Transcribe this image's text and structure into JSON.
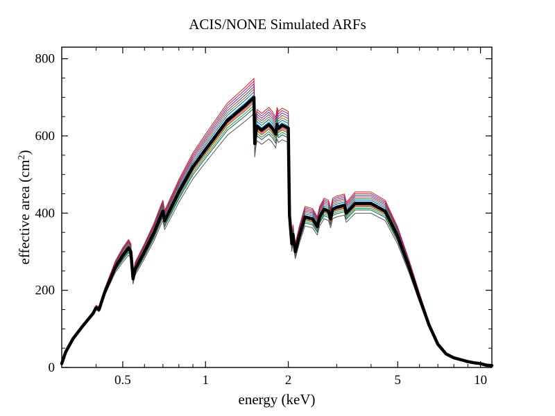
{
  "chart_data": {
    "type": "line",
    "title": "ACIS/NONE Simulated ARFs",
    "xlabel": "energy (keV)",
    "ylabel_main": "effective area (cm",
    "ylabel_sup": "2",
    "ylabel_close": ")",
    "x_scale": "log",
    "xlim": [
      0.3,
      11
    ],
    "ylim": [
      0,
      830
    ],
    "grid": false,
    "x_ticks": [
      {
        "value": 0.5,
        "label": "0.5"
      },
      {
        "value": 1,
        "label": "1"
      },
      {
        "value": 2,
        "label": "2"
      },
      {
        "value": 5,
        "label": "5"
      },
      {
        "value": 10,
        "label": "10"
      }
    ],
    "x_minor_ticks": [
      0.3,
      0.4,
      0.6,
      0.7,
      0.8,
      0.9,
      3,
      4,
      6,
      7,
      8,
      9
    ],
    "y_ticks": [
      {
        "value": 0,
        "label": "0"
      },
      {
        "value": 200,
        "label": "200"
      },
      {
        "value": 400,
        "label": "400"
      },
      {
        "value": 600,
        "label": "600"
      },
      {
        "value": 800,
        "label": "800"
      }
    ],
    "y_minor_step": 50,
    "base_curve": {
      "x": [
        0.3,
        0.31,
        0.33,
        0.36,
        0.39,
        0.4,
        0.41,
        0.43,
        0.47,
        0.5,
        0.525,
        0.535,
        0.545,
        0.555,
        0.6,
        0.65,
        0.69,
        0.7,
        0.71,
        0.8,
        0.9,
        1.0,
        1.2,
        1.4,
        1.5,
        1.51,
        1.525,
        1.54,
        1.6,
        1.7,
        1.75,
        1.8,
        1.82,
        1.84,
        1.9,
        2.0,
        2.02,
        2.06,
        2.08,
        2.12,
        2.2,
        2.3,
        2.45,
        2.55,
        2.6,
        2.7,
        2.8,
        2.85,
        2.9,
        3.0,
        3.2,
        3.25,
        3.5,
        4.0,
        4.5,
        5.0,
        5.5,
        6.0,
        6.5,
        7.0,
        7.5,
        8.0,
        8.5,
        9.0,
        9.5,
        10.0,
        10.5,
        11.0
      ],
      "y": [
        10,
        40,
        75,
        110,
        140,
        155,
        150,
        195,
        260,
        290,
        310,
        300,
        230,
        255,
        300,
        350,
        395,
        405,
        380,
        455,
        520,
        565,
        640,
        680,
        700,
        580,
        610,
        625,
        615,
        630,
        620,
        605,
        630,
        620,
        628,
        620,
        395,
        320,
        345,
        300,
        345,
        390,
        385,
        365,
        390,
        410,
        405,
        385,
        410,
        415,
        420,
        400,
        425,
        425,
        405,
        340,
        260,
        180,
        110,
        60,
        35,
        25,
        20,
        15,
        12,
        10,
        6,
        5
      ]
    },
    "series": [
      {
        "color": "#000000",
        "width": 4.5,
        "scale": 1.0
      },
      {
        "color": "#e41a1c",
        "width": 1,
        "scale": 1.07
      },
      {
        "color": "#e41a1c",
        "width": 1,
        "scale": 1.04
      },
      {
        "color": "#1f4fcf",
        "width": 1,
        "scale": 1.05
      },
      {
        "color": "#1f4fcf",
        "width": 1,
        "scale": 1.02
      },
      {
        "color": "#17a34a",
        "width": 1,
        "scale": 1.03
      },
      {
        "color": "#17a34a",
        "width": 1,
        "scale": 0.97
      },
      {
        "color": "#00bcd4",
        "width": 1,
        "scale": 1.01
      },
      {
        "color": "#00bcd4",
        "width": 1,
        "scale": 0.96
      },
      {
        "color": "#c2185b",
        "width": 1,
        "scale": 0.99
      },
      {
        "color": "#c2185b",
        "width": 1,
        "scale": 1.06
      },
      {
        "color": "#2e7d5b",
        "width": 1,
        "scale": 0.98
      },
      {
        "color": "#555555",
        "width": 1,
        "scale": 0.94
      },
      {
        "color": "#555555",
        "width": 1,
        "scale": 0.96
      },
      {
        "color": "#6a1b9a",
        "width": 1,
        "scale": 1.0
      },
      {
        "color": "#ff6f00",
        "width": 1,
        "scale": 0.985
      }
    ]
  }
}
